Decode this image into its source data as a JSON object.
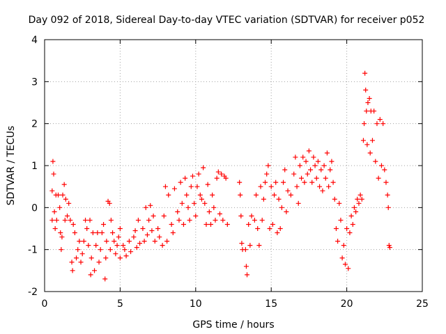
{
  "chart_data": {
    "type": "scatter",
    "title": "Day 092 of 2018, Sidereal Day-to-day VTEC variation (SDTVAR) for receiver p052",
    "xlabel": "GPS time / hours",
    "ylabel": "SDTVAR / TECUs",
    "xlim": [
      0,
      25
    ],
    "ylim": [
      -2,
      4
    ],
    "xticks": [
      0,
      5,
      10,
      15,
      20,
      25
    ],
    "yticks": [
      -2,
      -1,
      0,
      1,
      2,
      3,
      4
    ],
    "grid": true,
    "marker": "+",
    "color": "#ff0000",
    "series": [
      {
        "name": "SDTVAR",
        "points": [
          [
            0.5,
            0.4
          ],
          [
            0.5,
            -0.3
          ],
          [
            0.55,
            1.1
          ],
          [
            0.6,
            0.8
          ],
          [
            0.65,
            -0.1
          ],
          [
            0.7,
            -0.5
          ],
          [
            0.75,
            0.3
          ],
          [
            0.8,
            -0.3
          ],
          [
            0.9,
            0.3
          ],
          [
            1.0,
            0.0
          ],
          [
            1.05,
            -0.6
          ],
          [
            1.1,
            -1.0
          ],
          [
            1.15,
            -0.7
          ],
          [
            1.2,
            0.3
          ],
          [
            1.3,
            0.55
          ],
          [
            1.35,
            -0.3
          ],
          [
            1.4,
            0.2
          ],
          [
            1.5,
            -0.2
          ],
          [
            1.6,
            0.1
          ],
          [
            1.7,
            -0.3
          ],
          [
            1.8,
            -1.3
          ],
          [
            1.85,
            -1.5
          ],
          [
            1.9,
            -0.4
          ],
          [
            2.0,
            -0.6
          ],
          [
            2.1,
            -1.2
          ],
          [
            2.2,
            -1.0
          ],
          [
            2.3,
            -0.8
          ],
          [
            2.4,
            -1.3
          ],
          [
            2.5,
            -1.1
          ],
          [
            2.6,
            -0.8
          ],
          [
            2.7,
            -0.3
          ],
          [
            2.8,
            -0.5
          ],
          [
            2.9,
            -0.9
          ],
          [
            3.0,
            -0.3
          ],
          [
            3.05,
            -1.6
          ],
          [
            3.1,
            -1.2
          ],
          [
            3.2,
            -0.6
          ],
          [
            3.3,
            -1.5
          ],
          [
            3.4,
            -0.9
          ],
          [
            3.5,
            -0.6
          ],
          [
            3.6,
            -1.3
          ],
          [
            3.7,
            -1.0
          ],
          [
            3.8,
            -0.6
          ],
          [
            3.9,
            -0.4
          ],
          [
            4.0,
            -1.7
          ],
          [
            4.05,
            -1.2
          ],
          [
            4.1,
            -0.8
          ],
          [
            4.2,
            0.15
          ],
          [
            4.3,
            0.1
          ],
          [
            4.35,
            -1.0
          ],
          [
            4.4,
            -0.3
          ],
          [
            4.5,
            -0.6
          ],
          [
            4.6,
            -0.8
          ],
          [
            4.7,
            -1.1
          ],
          [
            4.8,
            -0.9
          ],
          [
            4.9,
            -0.7
          ],
          [
            5.0,
            -0.5
          ],
          [
            5.0,
            -1.2
          ],
          [
            5.2,
            -0.9
          ],
          [
            5.3,
            -1.0
          ],
          [
            5.4,
            -1.15
          ],
          [
            5.6,
            -0.8
          ],
          [
            5.7,
            -1.05
          ],
          [
            5.9,
            -0.7
          ],
          [
            6.0,
            -0.55
          ],
          [
            6.1,
            -0.95
          ],
          [
            6.2,
            -0.3
          ],
          [
            6.3,
            -0.85
          ],
          [
            6.5,
            -0.5
          ],
          [
            6.6,
            -0.8
          ],
          [
            6.7,
            0.0
          ],
          [
            6.8,
            -0.65
          ],
          [
            6.9,
            -0.3
          ],
          [
            7.0,
            0.05
          ],
          [
            7.1,
            -0.55
          ],
          [
            7.2,
            -0.2
          ],
          [
            7.3,
            -0.8
          ],
          [
            7.5,
            -0.5
          ],
          [
            7.6,
            -0.7
          ],
          [
            7.8,
            -0.9
          ],
          [
            7.9,
            -0.2
          ],
          [
            8.0,
            0.5
          ],
          [
            8.1,
            -0.8
          ],
          [
            8.2,
            0.3
          ],
          [
            8.4,
            -0.4
          ],
          [
            8.5,
            -0.6
          ],
          [
            8.6,
            0.45
          ],
          [
            8.8,
            -0.1
          ],
          [
            8.9,
            -0.3
          ],
          [
            9.0,
            0.6
          ],
          [
            9.1,
            0.1
          ],
          [
            9.2,
            -0.4
          ],
          [
            9.3,
            0.7
          ],
          [
            9.4,
            0.3
          ],
          [
            9.5,
            0.0
          ],
          [
            9.6,
            -0.3
          ],
          [
            9.7,
            0.5
          ],
          [
            9.8,
            0.75
          ],
          [
            9.9,
            0.1
          ],
          [
            10.0,
            -0.2
          ],
          [
            10.1,
            0.5
          ],
          [
            10.2,
            0.8
          ],
          [
            10.3,
            0.3
          ],
          [
            10.4,
            0.2
          ],
          [
            10.5,
            0.95
          ],
          [
            10.6,
            0.1
          ],
          [
            10.7,
            -0.4
          ],
          [
            10.8,
            0.55
          ],
          [
            10.9,
            -0.1
          ],
          [
            11.0,
            -0.4
          ],
          [
            11.1,
            0.3
          ],
          [
            11.2,
            0.0
          ],
          [
            11.3,
            -0.3
          ],
          [
            11.4,
            0.7
          ],
          [
            11.5,
            0.85
          ],
          [
            11.6,
            -0.15
          ],
          [
            11.7,
            0.8
          ],
          [
            11.8,
            -0.3
          ],
          [
            11.9,
            0.75
          ],
          [
            12.0,
            0.7
          ],
          [
            12.1,
            -0.4
          ],
          [
            12.9,
            0.6
          ],
          [
            12.95,
            0.3
          ],
          [
            13.0,
            -0.2
          ],
          [
            13.05,
            -0.85
          ],
          [
            13.1,
            -1.0
          ],
          [
            13.3,
            -1.0
          ],
          [
            13.35,
            -1.4
          ],
          [
            13.4,
            -1.6
          ],
          [
            13.5,
            -0.4
          ],
          [
            13.6,
            -0.9
          ],
          [
            13.7,
            -0.2
          ],
          [
            13.9,
            -0.3
          ],
          [
            14.0,
            0.3
          ],
          [
            14.1,
            -0.5
          ],
          [
            14.2,
            -0.9
          ],
          [
            14.3,
            0.5
          ],
          [
            14.4,
            -0.3
          ],
          [
            14.5,
            0.2
          ],
          [
            14.6,
            0.6
          ],
          [
            14.7,
            0.8
          ],
          [
            14.8,
            1.0
          ],
          [
            14.9,
            -0.5
          ],
          [
            15.0,
            0.5
          ],
          [
            15.1,
            -0.4
          ],
          [
            15.2,
            0.3
          ],
          [
            15.3,
            0.6
          ],
          [
            15.4,
            -0.6
          ],
          [
            15.5,
            0.2
          ],
          [
            15.6,
            -0.5
          ],
          [
            15.7,
            0.0
          ],
          [
            15.8,
            0.6
          ],
          [
            15.9,
            0.9
          ],
          [
            16.0,
            -0.1
          ],
          [
            16.1,
            0.4
          ],
          [
            16.3,
            0.3
          ],
          [
            16.5,
            0.8
          ],
          [
            16.6,
            1.2
          ],
          [
            16.7,
            0.5
          ],
          [
            16.8,
            0.1
          ],
          [
            16.9,
            1.0
          ],
          [
            17.0,
            0.7
          ],
          [
            17.1,
            1.2
          ],
          [
            17.2,
            0.6
          ],
          [
            17.3,
            1.1
          ],
          [
            17.4,
            0.8
          ],
          [
            17.5,
            1.35
          ],
          [
            17.6,
            0.9
          ],
          [
            17.7,
            0.6
          ],
          [
            17.8,
            1.2
          ],
          [
            17.9,
            1.0
          ],
          [
            18.0,
            0.7
          ],
          [
            18.1,
            1.1
          ],
          [
            18.2,
            0.5
          ],
          [
            18.3,
            0.9
          ],
          [
            18.4,
            0.4
          ],
          [
            18.5,
            1.0
          ],
          [
            18.6,
            0.7
          ],
          [
            18.7,
            1.3
          ],
          [
            18.8,
            0.5
          ],
          [
            18.9,
            0.9
          ],
          [
            19.0,
            1.1
          ],
          [
            19.1,
            0.6
          ],
          [
            19.2,
            0.2
          ],
          [
            19.3,
            -0.5
          ],
          [
            19.4,
            -0.8
          ],
          [
            19.5,
            0.1
          ],
          [
            19.6,
            -0.3
          ],
          [
            19.7,
            -1.2
          ],
          [
            19.8,
            -0.9
          ],
          [
            19.9,
            -1.35
          ],
          [
            20.0,
            -0.5
          ],
          [
            20.1,
            -1.45
          ],
          [
            20.2,
            -0.6
          ],
          [
            20.3,
            -0.2
          ],
          [
            20.4,
            -0.4
          ],
          [
            20.5,
            0.0
          ],
          [
            20.6,
            -0.1
          ],
          [
            20.7,
            0.2
          ],
          [
            20.8,
            0.1
          ],
          [
            20.9,
            0.3
          ],
          [
            21.0,
            0.2
          ],
          [
            21.1,
            1.6
          ],
          [
            21.15,
            2.0
          ],
          [
            21.2,
            3.2
          ],
          [
            21.25,
            2.8
          ],
          [
            21.3,
            2.3
          ],
          [
            21.35,
            1.5
          ],
          [
            21.4,
            2.5
          ],
          [
            21.5,
            2.6
          ],
          [
            21.55,
            1.3
          ],
          [
            21.6,
            2.3
          ],
          [
            21.7,
            1.6
          ],
          [
            21.8,
            2.3
          ],
          [
            21.9,
            1.1
          ],
          [
            22.0,
            2.0
          ],
          [
            22.1,
            0.7
          ],
          [
            22.2,
            2.1
          ],
          [
            22.3,
            1.0
          ],
          [
            22.4,
            2.0
          ],
          [
            22.5,
            0.9
          ],
          [
            22.6,
            0.6
          ],
          [
            22.7,
            0.3
          ],
          [
            22.75,
            0.0
          ],
          [
            22.8,
            -0.9
          ],
          [
            22.85,
            -0.95
          ]
        ]
      }
    ]
  }
}
